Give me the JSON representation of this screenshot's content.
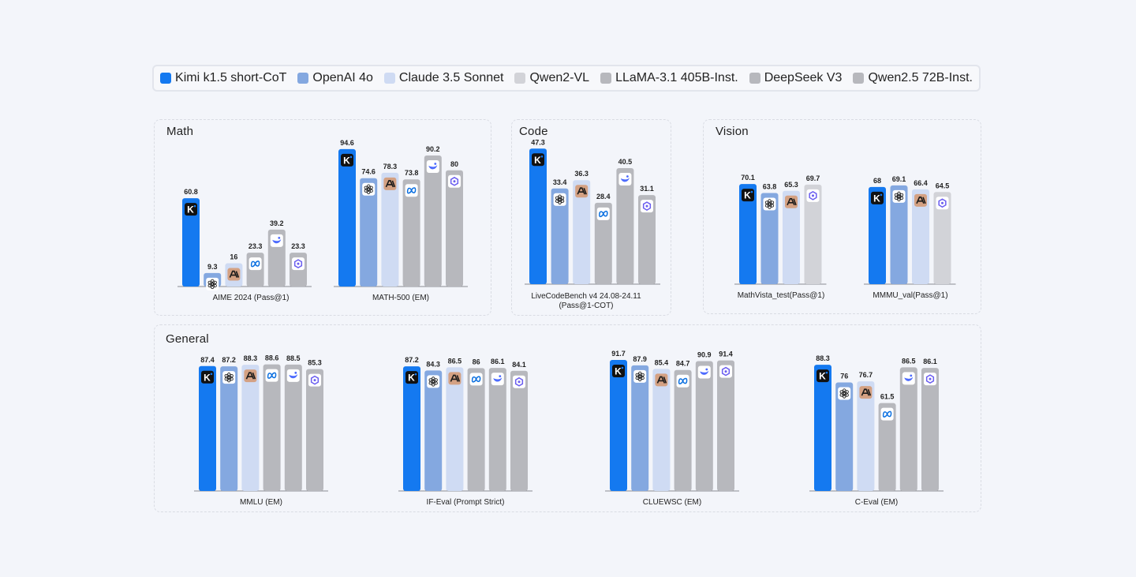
{
  "legend": [
    {
      "name": "Kimi k1.5 short-CoT",
      "color": "#1479f0",
      "icon": "kimi-logo-icon"
    },
    {
      "name": "OpenAI 4o",
      "color": "#84a8e0",
      "icon": "openai-logo-icon"
    },
    {
      "name": "Claude 3.5 Sonnet",
      "color": "#cfdbf3",
      "icon": "anthropic-logo-icon"
    },
    {
      "name": "Qwen2-VL",
      "color": "#d2d3d8",
      "icon": "qwen-logo-icon"
    },
    {
      "name": "LLaMA-3.1 405B-Inst.",
      "color": "#b7b8bd",
      "icon": "meta-logo-icon"
    },
    {
      "name": "DeepSeek V3",
      "color": "#b7b8bd",
      "icon": "deepseek-logo-icon"
    },
    {
      "name": "Qwen2.5 72B-Inst.",
      "color": "#b7b8bd",
      "icon": "qwen-logo-icon"
    }
  ],
  "panels": {
    "math": "Math",
    "code": "Code",
    "vision": "Vision",
    "general": "General"
  },
  "chart_data": [
    {
      "type": "bar",
      "panel": "math",
      "title": "AIME 2024 (Pass@1)",
      "ylim": [
        0,
        100
      ],
      "series": [
        "Kimi k1.5 short-CoT",
        "OpenAI 4o",
        "Claude 3.5 Sonnet",
        "LLaMA-3.1 405B-Inst.",
        "DeepSeek V3",
        "Qwen2.5 72B-Inst."
      ],
      "values": [
        60.8,
        9.3,
        16,
        23.3,
        39.2,
        23.3
      ]
    },
    {
      "type": "bar",
      "panel": "math",
      "title": "MATH-500 (EM)",
      "ylim": [
        0,
        100
      ],
      "series": [
        "Kimi k1.5 short-CoT",
        "OpenAI 4o",
        "Claude 3.5 Sonnet",
        "LLaMA-3.1 405B-Inst.",
        "DeepSeek V3",
        "Qwen2.5 72B-Inst."
      ],
      "values": [
        94.6,
        74.6,
        78.3,
        73.8,
        90.2,
        80
      ]
    },
    {
      "type": "bar",
      "panel": "code",
      "title": "LiveCodeBench v4 24.08-24.11",
      "title2": "(Pass@1-COT)",
      "ylim": [
        0,
        52
      ],
      "series": [
        "Kimi k1.5 short-CoT",
        "OpenAI 4o",
        "Claude 3.5 Sonnet",
        "LLaMA-3.1 405B-Inst.",
        "DeepSeek V3",
        "Qwen2.5 72B-Inst."
      ],
      "values": [
        47.3,
        33.4,
        36.3,
        28.4,
        40.5,
        31.1
      ]
    },
    {
      "type": "bar",
      "panel": "vision",
      "title": "MathVista_test(Pass@1)",
      "ylim": [
        0,
        100
      ],
      "series": [
        "Kimi k1.5 short-CoT",
        "OpenAI 4o",
        "Claude 3.5 Sonnet",
        "Qwen2-VL"
      ],
      "values": [
        70.1,
        63.8,
        65.3,
        69.7
      ]
    },
    {
      "type": "bar",
      "panel": "vision",
      "title": "MMMU_val(Pass@1)",
      "ylim": [
        0,
        100
      ],
      "series": [
        "Kimi k1.5 short-CoT",
        "OpenAI 4o",
        "Claude 3.5 Sonnet",
        "Qwen2-VL"
      ],
      "values": [
        68,
        69.1,
        66.4,
        64.5
      ]
    },
    {
      "type": "bar",
      "panel": "general",
      "title": "MMLU (EM)",
      "ylim": [
        0,
        100
      ],
      "series": [
        "Kimi k1.5 short-CoT",
        "OpenAI 4o",
        "Claude 3.5 Sonnet",
        "LLaMA-3.1 405B-Inst.",
        "DeepSeek V3",
        "Qwen2.5 72B-Inst."
      ],
      "values": [
        87.4,
        87.2,
        88.3,
        88.6,
        88.5,
        85.3
      ]
    },
    {
      "type": "bar",
      "panel": "general",
      "title": "IF-Eval (Prompt Strict)",
      "ylim": [
        0,
        100
      ],
      "series": [
        "Kimi k1.5 short-CoT",
        "OpenAI 4o",
        "Claude 3.5 Sonnet",
        "LLaMA-3.1 405B-Inst.",
        "DeepSeek V3",
        "Qwen2.5 72B-Inst."
      ],
      "values": [
        87.2,
        84.3,
        86.5,
        86,
        86.1,
        84.1
      ]
    },
    {
      "type": "bar",
      "panel": "general",
      "title": "CLUEWSC (EM)",
      "ylim": [
        0,
        100
      ],
      "series": [
        "Kimi k1.5 short-CoT",
        "OpenAI 4o",
        "Claude 3.5 Sonnet",
        "LLaMA-3.1 405B-Inst.",
        "DeepSeek V3",
        "Qwen2.5 72B-Inst."
      ],
      "values": [
        91.7,
        87.9,
        85.4,
        84.7,
        90.9,
        91.4
      ]
    },
    {
      "type": "bar",
      "panel": "general",
      "title": "C-Eval (EM)",
      "ylim": [
        0,
        100
      ],
      "series": [
        "Kimi k1.5 short-CoT",
        "OpenAI 4o",
        "Claude 3.5 Sonnet",
        "LLaMA-3.1 405B-Inst.",
        "DeepSeek V3",
        "Qwen2.5 72B-Inst."
      ],
      "values": [
        88.3,
        76,
        76.7,
        61.5,
        86.5,
        86.1
      ]
    }
  ]
}
